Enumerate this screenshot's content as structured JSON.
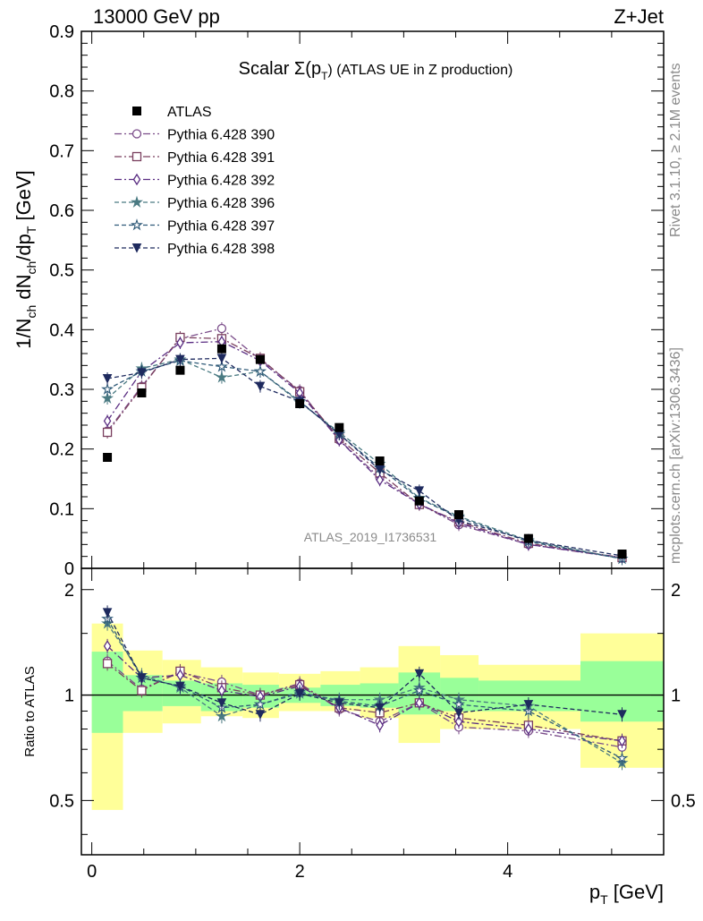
{
  "header": {
    "left": "13000 GeV pp",
    "right": "Z+Jet"
  },
  "side_labels": {
    "top": "Rivet 3.1.10, ≥ 2.1M events",
    "bottom": "mcplots.cern.ch [arXiv:1306.3436]"
  },
  "chart_data": [
    {
      "type": "line",
      "title_main": "Scalar Σ(p",
      "title_sub": "T",
      "title_rest": ") (ATLAS UE in Z production)",
      "ylabel": "1/N_ch dN_ch/dp_T [GeV]",
      "watermark": "ATLAS_2019_I1736531",
      "xlim": [
        -0.1,
        5.5
      ],
      "ylim": [
        0,
        0.9
      ],
      "yticks": [
        "0",
        "0.1",
        "0.2",
        "0.3",
        "0.4",
        "0.5",
        "0.6",
        "0.7",
        "0.8",
        "0.9"
      ],
      "x": [
        0.15,
        0.48,
        0.85,
        1.25,
        1.62,
        2.0,
        2.38,
        2.77,
        3.15,
        3.53,
        4.2,
        5.1
      ],
      "data": {
        "name": "ATLAS",
        "values": [
          0.186,
          0.294,
          0.332,
          0.368,
          0.35,
          0.276,
          0.236,
          0.18,
          0.113,
          0.09,
          0.05,
          0.024
        ]
      },
      "series": [
        {
          "name": "Pythia 6.428 390",
          "color": "#7b4d8a",
          "marker": "circle",
          "dash": "8,3,2,3",
          "values": [
            0.23,
            0.305,
            0.385,
            0.402,
            0.35,
            0.298,
            0.215,
            0.152,
            0.108,
            0.073,
            0.04,
            0.017
          ]
        },
        {
          "name": "Pythia 6.428 391",
          "color": "#7a3f5e",
          "marker": "square",
          "dash": "8,3,2,3",
          "values": [
            0.228,
            0.303,
            0.387,
            0.385,
            0.352,
            0.296,
            0.218,
            0.16,
            0.107,
            0.078,
            0.042,
            0.018
          ]
        },
        {
          "name": "Pythia 6.428 392",
          "color": "#5a2d82",
          "marker": "diamond",
          "dash": "8,3,2,3",
          "values": [
            0.247,
            0.33,
            0.378,
            0.38,
            0.348,
            0.294,
            0.215,
            0.148,
            0.108,
            0.076,
            0.04,
            0.018
          ]
        },
        {
          "name": "Pythia 6.428 396",
          "color": "#4a7a82",
          "marker": "star",
          "dash": "5,3",
          "values": [
            0.285,
            0.335,
            0.35,
            0.32,
            0.33,
            0.278,
            0.228,
            0.175,
            0.118,
            0.087,
            0.047,
            0.016
          ]
        },
        {
          "name": "Pythia 6.428 397",
          "color": "#2f5a78",
          "marker": "openstar",
          "dash": "5,3",
          "values": [
            0.3,
            0.33,
            0.348,
            0.338,
            0.33,
            0.28,
            0.225,
            0.168,
            0.117,
            0.085,
            0.045,
            0.016
          ]
        },
        {
          "name": "Pythia 6.428 398",
          "color": "#1e2a5e",
          "marker": "triangle",
          "dash": "5,3",
          "values": [
            0.318,
            0.328,
            0.35,
            0.352,
            0.305,
            0.28,
            0.225,
            0.165,
            0.13,
            0.08,
            0.047,
            0.021
          ]
        }
      ]
    },
    {
      "type": "line",
      "ylabel": "Ratio to ATLAS",
      "xlabel": "p_T [GeV]",
      "xlim": [
        -0.1,
        5.5
      ],
      "ylim": [
        0.35,
        2.3
      ],
      "yticks": [
        "0.5",
        "1",
        "2"
      ],
      "xticks": [
        "0",
        "2",
        "4"
      ],
      "bins": [
        [
          0.0,
          0.3
        ],
        [
          0.3,
          0.68
        ],
        [
          0.68,
          1.05
        ],
        [
          1.05,
          1.45
        ],
        [
          1.45,
          1.8
        ],
        [
          1.8,
          2.2
        ],
        [
          2.2,
          2.58
        ],
        [
          2.58,
          2.95
        ],
        [
          2.95,
          3.35
        ],
        [
          3.35,
          3.72
        ],
        [
          3.72,
          4.7
        ],
        [
          4.7,
          5.5
        ]
      ],
      "band_stat_low": [
        0.78,
        0.9,
        0.93,
        0.9,
        0.92,
        0.95,
        0.93,
        0.92,
        0.88,
        0.9,
        0.9,
        0.84
      ],
      "band_stat_high": [
        1.33,
        1.14,
        1.1,
        1.08,
        1.07,
        1.05,
        1.07,
        1.08,
        1.16,
        1.12,
        1.1,
        1.25
      ],
      "band_tot_low": [
        0.47,
        0.78,
        0.83,
        0.87,
        0.86,
        0.9,
        0.9,
        0.86,
        0.73,
        0.8,
        0.8,
        0.62
      ],
      "band_tot_high": [
        1.6,
        1.34,
        1.26,
        1.2,
        1.16,
        1.15,
        1.17,
        1.2,
        1.38,
        1.3,
        1.22,
        1.5
      ],
      "series_ratios": [
        [
          1.25,
          1.04,
          1.16,
          1.09,
          1.0,
          1.08,
          0.91,
          0.84,
          0.95,
          0.81,
          0.79,
          0.71
        ],
        [
          1.23,
          1.03,
          1.17,
          1.05,
          1.0,
          1.07,
          0.92,
          0.89,
          0.95,
          0.86,
          0.82,
          0.74
        ],
        [
          1.38,
          1.12,
          1.14,
          1.03,
          0.99,
          1.06,
          0.92,
          0.82,
          0.95,
          0.84,
          0.8,
          0.74
        ],
        [
          1.6,
          1.14,
          1.05,
          0.87,
          0.94,
          1.01,
          0.97,
          0.97,
          1.05,
          0.97,
          0.93,
          0.64
        ],
        [
          1.65,
          1.12,
          1.06,
          0.92,
          0.94,
          1.02,
          0.96,
          0.93,
          1.03,
          0.94,
          0.9,
          0.66
        ],
        [
          1.72,
          1.12,
          1.06,
          0.95,
          0.88,
          1.01,
          0.95,
          0.92,
          1.15,
          0.89,
          0.94,
          0.88
        ]
      ]
    }
  ]
}
